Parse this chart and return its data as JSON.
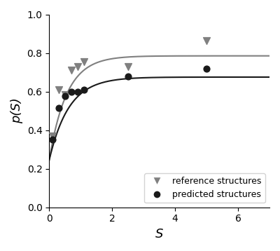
{
  "ref_x": [
    0.1,
    0.3,
    0.5,
    0.7,
    0.9,
    1.1,
    2.5,
    5.0
  ],
  "ref_y": [
    0.37,
    0.61,
    0.585,
    0.71,
    0.73,
    0.755,
    0.73,
    0.862
  ],
  "pred_x": [
    0.1,
    0.3,
    0.5,
    0.7,
    0.9,
    1.1,
    2.5,
    5.0
  ],
  "pred_y": [
    0.35,
    0.515,
    0.575,
    0.6,
    0.6,
    0.61,
    0.68,
    0.72
  ],
  "ref_curve_a": 0.785,
  "ref_curve_b": 1.8,
  "ref_curve_c": 0.245,
  "pred_curve_a": 0.675,
  "pred_curve_b": 1.6,
  "pred_curve_c": 0.245,
  "ref_color": "#808080",
  "pred_color": "#1a1a1a",
  "xlabel": "S",
  "ylabel": "p(S)",
  "xlim": [
    0,
    7
  ],
  "ylim": [
    0.0,
    1.0
  ],
  "xticks": [
    0,
    2,
    4,
    6
  ],
  "yticks": [
    0.0,
    0.2,
    0.4,
    0.6,
    0.8,
    1.0
  ],
  "legend_ref": "reference structures",
  "legend_pred": "predicted structures",
  "figsize": [
    4.0,
    3.58
  ],
  "dpi": 100
}
